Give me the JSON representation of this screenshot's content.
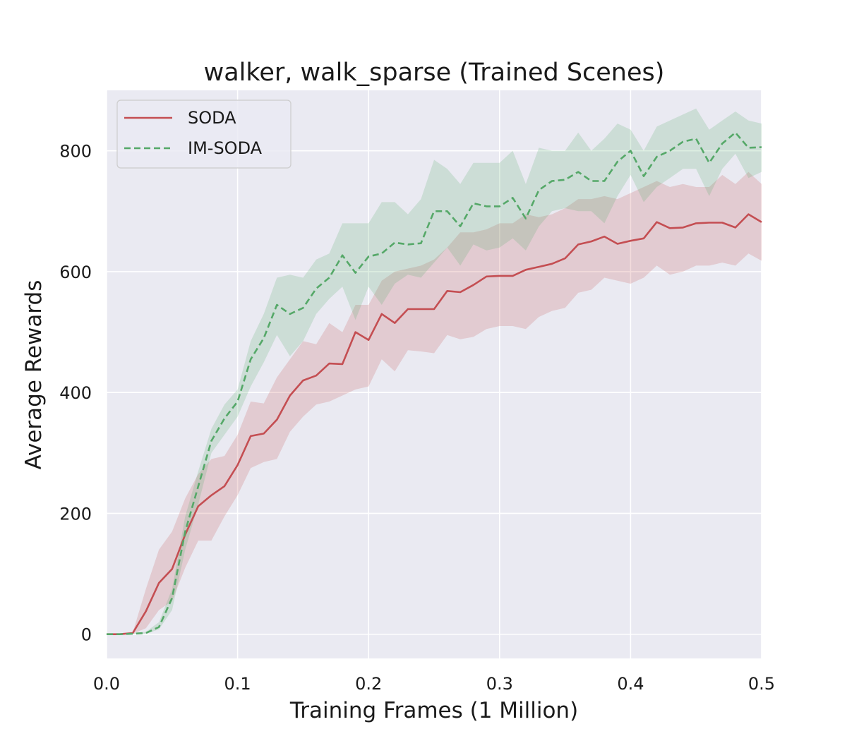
{
  "chart_data": {
    "type": "line",
    "title": "walker, walk_sparse (Trained Scenes)",
    "xlabel": "Training Frames (1 Million)",
    "ylabel": "Average Rewards",
    "xlim": [
      0.0,
      0.5
    ],
    "ylim": [
      -40,
      900
    ],
    "xticks": [
      0.0,
      0.1,
      0.2,
      0.3,
      0.4,
      0.5
    ],
    "xtick_labels": [
      "0.0",
      "0.1",
      "0.2",
      "0.3",
      "0.4",
      "0.5"
    ],
    "yticks": [
      0,
      200,
      400,
      600,
      800
    ],
    "ytick_labels": [
      "0",
      "200",
      "400",
      "600",
      "800"
    ],
    "grid": true,
    "legend_position": "top-left",
    "background_color": "#eaeaf2",
    "x": [
      0.0,
      0.01,
      0.02,
      0.03,
      0.04,
      0.05,
      0.06,
      0.07,
      0.08,
      0.09,
      0.1,
      0.11,
      0.12,
      0.13,
      0.14,
      0.15,
      0.16,
      0.17,
      0.18,
      0.19,
      0.2,
      0.21,
      0.22,
      0.23,
      0.24,
      0.25,
      0.26,
      0.27,
      0.28,
      0.29,
      0.3,
      0.31,
      0.32,
      0.33,
      0.34,
      0.35,
      0.36,
      0.37,
      0.38,
      0.39,
      0.4,
      0.41,
      0.42,
      0.43,
      0.44,
      0.45,
      0.46,
      0.47,
      0.48,
      0.49,
      0.5
    ],
    "series": [
      {
        "name": "SODA",
        "color": "#c44e52",
        "line_style": "solid",
        "values": [
          0,
          0,
          2,
          38,
          85,
          108,
          165,
          212,
          230,
          245,
          280,
          328,
          332,
          355,
          395,
          420,
          428,
          448,
          447,
          500,
          487,
          530,
          515,
          538,
          538,
          538,
          568,
          566,
          578,
          592,
          593,
          593,
          603,
          608,
          613,
          622,
          645,
          650,
          658,
          646,
          651,
          655,
          682,
          672,
          673,
          680,
          681,
          681,
          673,
          695,
          682
        ],
        "upper": [
          0,
          0,
          3,
          75,
          140,
          170,
          225,
          265,
          290,
          295,
          330,
          385,
          382,
          425,
          455,
          485,
          480,
          515,
          500,
          545,
          545,
          585,
          600,
          605,
          610,
          620,
          640,
          665,
          665,
          670,
          680,
          680,
          695,
          690,
          695,
          705,
          720,
          720,
          725,
          720,
          730,
          740,
          750,
          740,
          745,
          740,
          740,
          760,
          745,
          765,
          745
        ],
        "lower": [
          0,
          0,
          1,
          10,
          40,
          55,
          110,
          155,
          155,
          195,
          230,
          275,
          285,
          290,
          335,
          360,
          380,
          385,
          395,
          405,
          410,
          455,
          435,
          470,
          468,
          465,
          495,
          488,
          492,
          505,
          510,
          510,
          505,
          525,
          535,
          540,
          565,
          570,
          590,
          585,
          580,
          590,
          610,
          595,
          600,
          610,
          610,
          615,
          610,
          630,
          618
        ]
      },
      {
        "name": "IM-SODA",
        "color": "#55a868",
        "line_style": "dashed",
        "values": [
          0,
          0,
          1,
          2,
          12,
          60,
          170,
          245,
          320,
          357,
          385,
          455,
          490,
          545,
          530,
          540,
          572,
          590,
          627,
          598,
          625,
          630,
          648,
          645,
          647,
          700,
          700,
          675,
          713,
          708,
          708,
          722,
          688,
          735,
          750,
          752,
          765,
          750,
          750,
          782,
          800,
          758,
          790,
          800,
          815,
          820,
          780,
          812,
          830,
          805,
          806
        ],
        "upper": [
          0,
          0,
          2,
          4,
          20,
          75,
          195,
          270,
          340,
          380,
          405,
          485,
          530,
          590,
          595,
          590,
          620,
          630,
          680,
          680,
          680,
          715,
          715,
          695,
          720,
          785,
          770,
          745,
          780,
          780,
          780,
          800,
          745,
          805,
          800,
          800,
          830,
          800,
          820,
          845,
          835,
          800,
          840,
          850,
          860,
          870,
          835,
          850,
          865,
          850,
          845
        ],
        "lower": [
          0,
          0,
          1,
          1,
          8,
          40,
          140,
          215,
          300,
          330,
          360,
          410,
          450,
          495,
          460,
          485,
          530,
          555,
          575,
          520,
          575,
          545,
          580,
          595,
          590,
          615,
          640,
          610,
          645,
          635,
          640,
          655,
          635,
          675,
          700,
          705,
          700,
          700,
          680,
          725,
          760,
          715,
          740,
          755,
          770,
          770,
          725,
          770,
          795,
          755,
          765
        ]
      }
    ]
  }
}
